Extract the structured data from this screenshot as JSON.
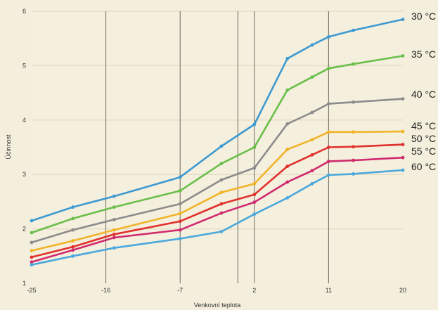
{
  "chart_data": {
    "type": "line",
    "xlabel": "Venkovní teplota",
    "ylabel": "Účinnost",
    "xlim": [
      -25,
      20
    ],
    "ylim": [
      1,
      6
    ],
    "x_ticks": [
      -25,
      -16,
      -7,
      2,
      11,
      20
    ],
    "y_ticks": [
      1,
      2,
      3,
      4,
      5,
      6
    ],
    "vertical_lines": [
      -16,
      -7,
      0,
      2,
      11
    ],
    "grid": "vertical lines at marked temperatures",
    "legend_position": "right, labels at line ends",
    "x": [
      -25,
      -20,
      -15,
      -7,
      -2,
      2,
      6,
      9,
      11,
      14,
      20
    ],
    "series": [
      {
        "name": "30 °C",
        "color": "#3d9ad1",
        "values": [
          2.15,
          2.4,
          2.6,
          2.95,
          3.52,
          3.92,
          5.13,
          5.38,
          5.53,
          5.65,
          5.85
        ]
      },
      {
        "name": "35 °C",
        "color": "#6abf4b",
        "values": [
          1.93,
          2.19,
          2.4,
          2.7,
          3.2,
          3.5,
          4.55,
          4.79,
          4.95,
          5.03,
          5.18
        ]
      },
      {
        "name": "40 °C",
        "color": "#8c8c8c",
        "values": [
          1.75,
          1.98,
          2.17,
          2.46,
          2.9,
          3.12,
          3.93,
          4.14,
          4.3,
          4.33,
          4.39
        ]
      },
      {
        "name": "45 °C",
        "color": "#f0b428",
        "values": [
          1.6,
          1.78,
          1.98,
          2.28,
          2.67,
          2.83,
          3.46,
          3.64,
          3.78,
          3.78,
          3.79
        ]
      },
      {
        "name": "50 °C",
        "color": "#e0322d",
        "values": [
          1.48,
          1.67,
          1.9,
          2.14,
          2.46,
          2.63,
          3.15,
          3.36,
          3.5,
          3.51,
          3.55
        ]
      },
      {
        "name": "55 °C",
        "color": "#d02a6e",
        "values": [
          1.39,
          1.61,
          1.84,
          1.98,
          2.29,
          2.49,
          2.86,
          3.07,
          3.24,
          3.26,
          3.31
        ]
      },
      {
        "name": "60 °C",
        "color": "#4aa8dc",
        "values": [
          1.34,
          1.5,
          1.65,
          1.82,
          1.95,
          2.27,
          2.57,
          2.83,
          2.99,
          3.01,
          3.08
        ]
      }
    ]
  }
}
